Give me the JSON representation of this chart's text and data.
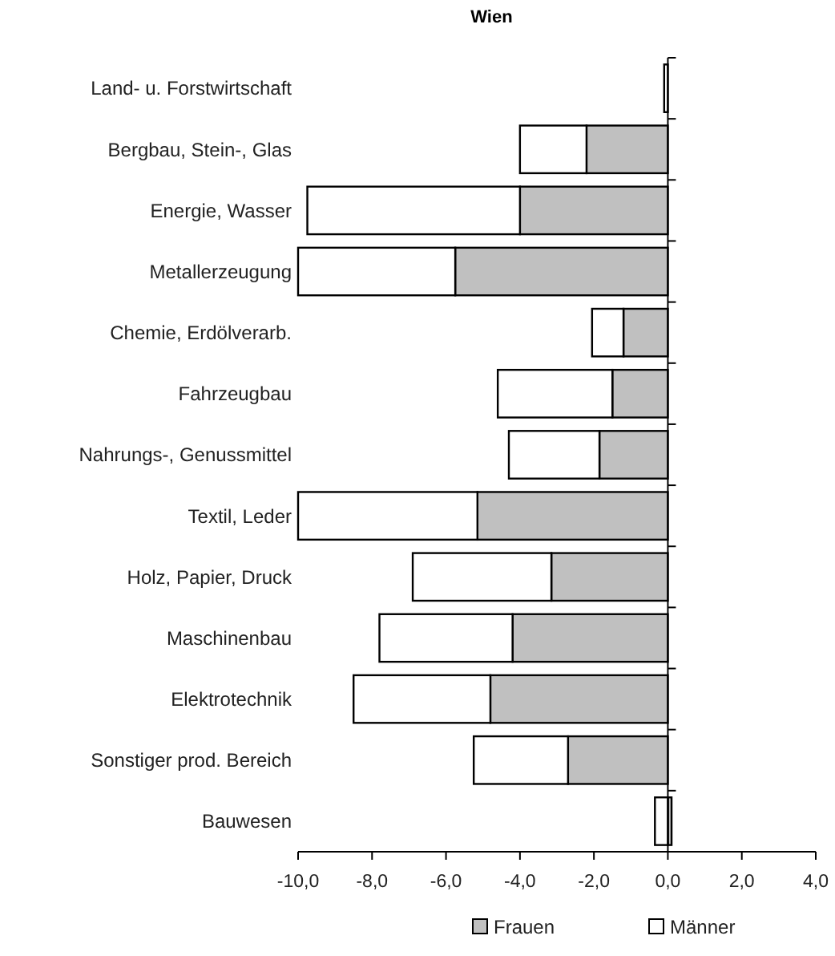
{
  "chart_data": {
    "type": "bar",
    "title": "Wien",
    "orientation": "horizontal",
    "stacked": true,
    "categories": [
      "Land- u. Forstwirtschaft",
      "Bergbau, Stein-, Glas",
      "Energie, Wasser",
      "Metallerzeugung",
      "Chemie, Erdölverarb.",
      "Fahrzeugbau",
      "Nahrungs-, Genussmittel",
      "Textil, Leder",
      "Holz, Papier, Druck",
      "Maschinenbau",
      "Elektrotechnik",
      "Sonstiger prod. Bereich",
      "Bauwesen"
    ],
    "series": [
      {
        "name": "Frauen",
        "color": "#c0c0c0",
        "values": [
          null,
          -2.2,
          -4.0,
          -5.75,
          -1.2,
          -1.5,
          -1.85,
          -5.15,
          -3.15,
          -4.2,
          -4.8,
          -2.7,
          0.1
        ]
      },
      {
        "name": "Männer",
        "color": "#ffffff",
        "values": [
          -0.1,
          -1.8,
          -5.75,
          -4.25,
          -0.85,
          -3.1,
          -2.45,
          -4.85,
          -3.75,
          -3.6,
          -3.7,
          -2.55,
          -0.35
        ]
      }
    ],
    "xlim": [
      -10,
      4
    ],
    "xticks": [
      {
        "value": -10,
        "label": "-10,0"
      },
      {
        "value": -8,
        "label": "-8,0"
      },
      {
        "value": -6,
        "label": "-6,0"
      },
      {
        "value": -4,
        "label": "-4,0"
      },
      {
        "value": -2,
        "label": "-2,0"
      },
      {
        "value": 0,
        "label": "0,0"
      },
      {
        "value": 2,
        "label": "2,0"
      },
      {
        "value": 4,
        "label": "4,0"
      }
    ],
    "legend": "bottom"
  }
}
